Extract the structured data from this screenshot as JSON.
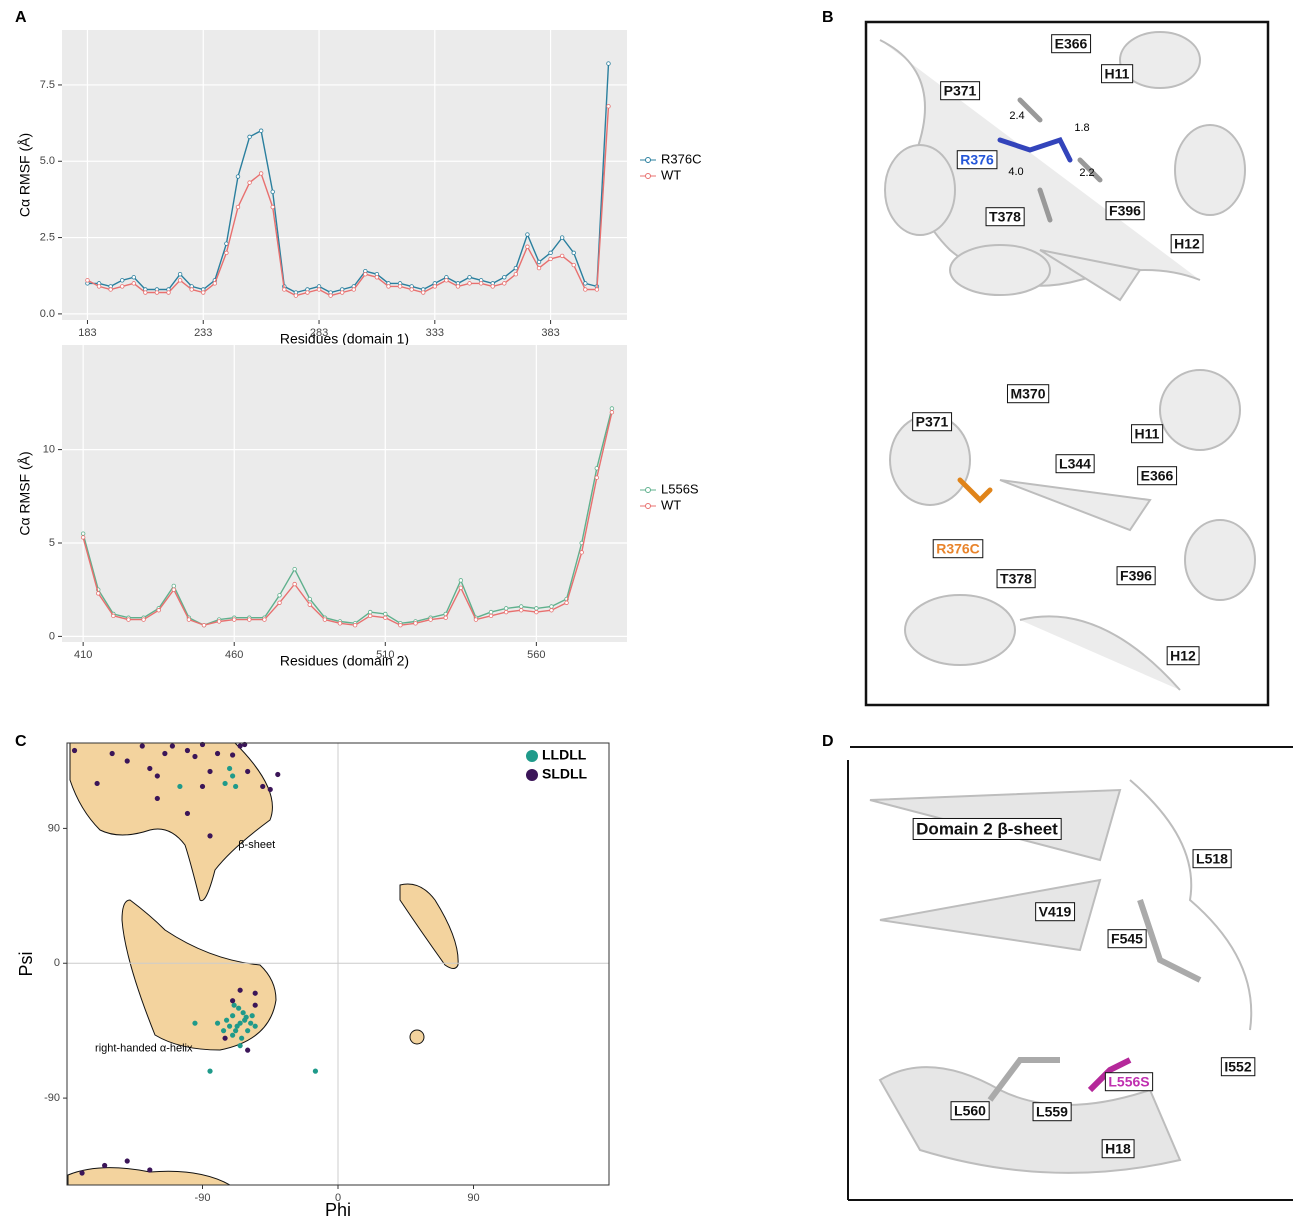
{
  "panels": [
    "A",
    "B",
    "C",
    "D"
  ],
  "chart_data": [
    {
      "type": "line",
      "ylabel": "Cα RMSF (Å)",
      "xlabel": "Residues (domain 1)",
      "grid": true,
      "x": [
        183,
        188,
        193,
        198,
        203,
        208,
        213,
        218,
        223,
        228,
        233,
        238,
        243,
        248,
        253,
        258,
        263,
        268,
        273,
        278,
        283,
        288,
        293,
        298,
        303,
        308,
        313,
        318,
        323,
        328,
        333,
        338,
        343,
        348,
        353,
        358,
        363,
        368,
        373,
        378,
        383,
        388,
        393,
        398,
        403,
        408
      ],
      "series": [
        {
          "name": "R376C",
          "color": "#2a7f9e",
          "values": [
            1.0,
            1.0,
            0.9,
            1.1,
            1.2,
            0.8,
            0.8,
            0.8,
            1.3,
            0.9,
            0.8,
            1.1,
            2.3,
            4.5,
            5.8,
            6.0,
            4.0,
            0.9,
            0.7,
            0.8,
            0.9,
            0.7,
            0.8,
            0.9,
            1.4,
            1.3,
            1.0,
            1.0,
            0.9,
            0.8,
            1.0,
            1.2,
            1.0,
            1.2,
            1.1,
            1.0,
            1.2,
            1.5,
            2.6,
            1.7,
            2.0,
            2.5,
            2.0,
            1.0,
            0.9,
            8.2
          ]
        },
        {
          "name": "WT",
          "color": "#e8706f",
          "values": [
            1.1,
            0.9,
            0.8,
            0.9,
            1.0,
            0.7,
            0.7,
            0.7,
            1.1,
            0.8,
            0.7,
            1.0,
            2.0,
            3.5,
            4.3,
            4.6,
            3.5,
            0.8,
            0.6,
            0.7,
            0.8,
            0.6,
            0.7,
            0.8,
            1.3,
            1.2,
            0.9,
            0.9,
            0.8,
            0.7,
            0.9,
            1.1,
            0.9,
            1.0,
            1.0,
            0.9,
            1.0,
            1.3,
            2.2,
            1.5,
            1.8,
            1.9,
            1.6,
            0.8,
            0.8,
            6.8
          ]
        }
      ],
      "xlim": [
        172,
        416
      ],
      "ylim": [
        -0.2,
        9.3
      ],
      "xticks": [
        183,
        233,
        283,
        333,
        383
      ],
      "yticks": [
        {
          "value": 0,
          "label": "0.0"
        },
        2.5,
        {
          "value": 5,
          "label": "5.0"
        },
        7.5
      ]
    },
    {
      "type": "line",
      "ylabel": "Cα RMSF (Å)",
      "xlabel": "Residues (domain 2)",
      "grid": true,
      "x": [
        410,
        415,
        420,
        425,
        430,
        435,
        440,
        445,
        450,
        455,
        460,
        465,
        470,
        475,
        480,
        485,
        490,
        495,
        500,
        505,
        510,
        515,
        520,
        525,
        530,
        535,
        540,
        545,
        550,
        555,
        560,
        565,
        570,
        575,
        580,
        585
      ],
      "series": [
        {
          "name": "L556S",
          "color": "#5fb08d",
          "values": [
            5.5,
            2.5,
            1.2,
            1.0,
            1.0,
            1.5,
            2.7,
            1.0,
            0.6,
            0.9,
            1.0,
            1.0,
            1.0,
            2.2,
            3.6,
            2.0,
            1.0,
            0.8,
            0.7,
            1.3,
            1.2,
            0.7,
            0.8,
            1.0,
            1.2,
            3.0,
            1.0,
            1.3,
            1.5,
            1.6,
            1.5,
            1.6,
            2.0,
            5.0,
            9.0,
            12.2
          ]
        },
        {
          "name": "WT",
          "color": "#e8706f",
          "values": [
            5.3,
            2.3,
            1.1,
            0.9,
            0.9,
            1.4,
            2.5,
            0.9,
            0.6,
            0.8,
            0.9,
            0.9,
            0.9,
            1.8,
            2.8,
            1.7,
            0.9,
            0.7,
            0.6,
            1.1,
            1.0,
            0.6,
            0.7,
            0.9,
            1.0,
            2.6,
            0.9,
            1.1,
            1.3,
            1.4,
            1.3,
            1.4,
            1.8,
            4.5,
            8.5,
            12.0
          ]
        }
      ],
      "xlim": [
        403,
        590
      ],
      "ylim": [
        -0.3,
        15.6
      ],
      "xticks": [
        410,
        460,
        510,
        560
      ],
      "yticks": [
        0,
        5,
        10
      ]
    },
    {
      "type": "scatter",
      "xlabel": "Phi",
      "ylabel": "Psi",
      "grid": false,
      "zero_lines": true,
      "xlim": [
        -180,
        180
      ],
      "ylim": [
        -148,
        147
      ],
      "xticks": [
        -90,
        0,
        90
      ],
      "yticks": [
        -90,
        0,
        90
      ],
      "annotations": [
        {
          "text": "β-sheet",
          "x": -54,
          "y": 79
        },
        {
          "text": "right-handed α-helix",
          "x": -129,
          "y": -57
        }
      ],
      "series": [
        {
          "name": "LLDLL",
          "color": "#1f9a8a",
          "x": [
            -70,
            -65,
            -68,
            -62,
            -72,
            -60,
            -66,
            -74,
            -58,
            -64,
            -70,
            -63,
            -67,
            -61,
            -55,
            -76,
            -69,
            -65,
            -80,
            -57,
            -95,
            -85,
            -15,
            -75,
            -70,
            -105,
            -72,
            -68
          ],
          "values": [
            -35,
            -40,
            -45,
            -38,
            -42,
            -45,
            -30,
            -38,
            -40,
            -50,
            -48,
            -33,
            -42,
            -36,
            -42,
            -45,
            -28,
            -55,
            -40,
            -35,
            -40,
            -72,
            -72,
            120,
            125,
            118,
            130,
            118
          ]
        },
        {
          "name": "SLDLL",
          "color": "#3b1558",
          "x": [
            -150,
            -140,
            -130,
            -125,
            -115,
            -110,
            -100,
            -95,
            -90,
            -85,
            -80,
            -70,
            -60,
            -50,
            -45,
            -40,
            -160,
            -175,
            -120,
            -90,
            -65,
            -100,
            -155,
            -140,
            -125,
            -170,
            -55,
            -65,
            -70,
            -75,
            -60,
            -55,
            -120,
            -85,
            -62
          ],
          "values": [
            140,
            135,
            145,
            130,
            140,
            145,
            142,
            138,
            146,
            128,
            140,
            139,
            128,
            118,
            116,
            126,
            120,
            142,
            110,
            118,
            145,
            100,
            -135,
            -132,
            -138,
            -140,
            -20,
            -18,
            -25,
            -50,
            -58,
            -28,
            125,
            85,
            146
          ]
        }
      ]
    }
  ],
  "panel_b": {
    "residues": [
      "E366",
      "H11",
      "P371",
      "R376",
      "T378",
      "F396",
      "H12",
      "M370",
      "P371",
      "H11",
      "L344",
      "E366",
      "R376C",
      "T378",
      "F396",
      "H12"
    ],
    "distances": [
      "2.4",
      "1.8",
      "4.0",
      "2.2"
    ]
  },
  "panel_d": {
    "labels": [
      "Domain 2 β-sheet",
      "L518",
      "V419",
      "F545",
      "I552",
      "L556S",
      "L560",
      "L559",
      "H18"
    ]
  }
}
